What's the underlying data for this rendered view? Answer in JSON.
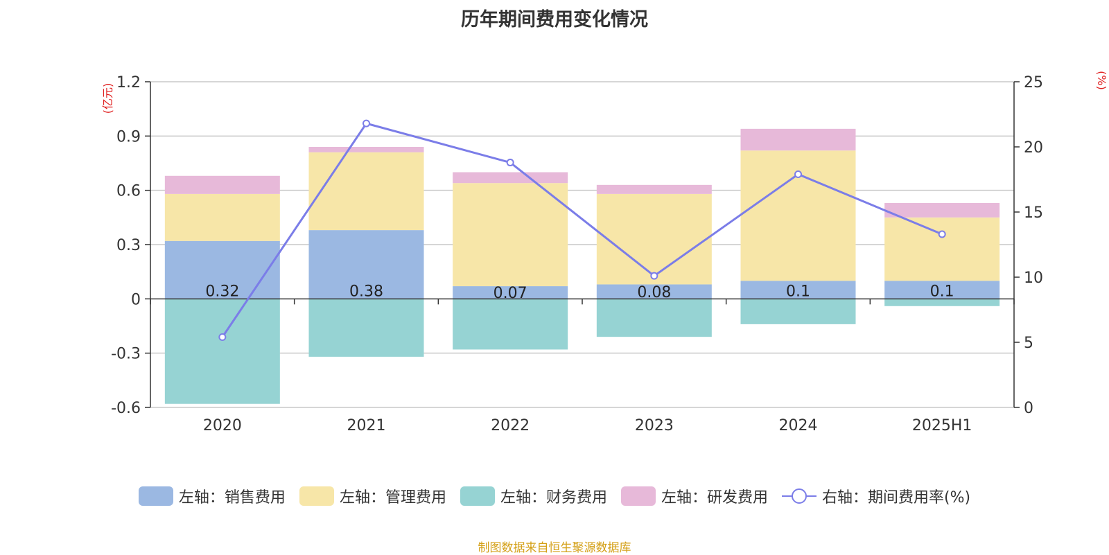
{
  "title": "历年期间费用变化情况",
  "source": "制图数据来自恒生聚源数据库",
  "chart_data": {
    "type": "bar",
    "stacked": true,
    "categories": [
      "2020",
      "2021",
      "2022",
      "2023",
      "2024",
      "2025H1"
    ],
    "left_axis": {
      "unit": "(亿元)",
      "ticks": [
        "1.2",
        "0.9",
        "0.6",
        "0.3",
        "0",
        "-0.3",
        "-0.6"
      ],
      "range": [
        -0.6,
        1.2
      ]
    },
    "right_axis": {
      "unit": "(%)",
      "ticks": [
        "25",
        "20",
        "15",
        "10",
        "5",
        "0"
      ],
      "range": [
        0,
        25
      ]
    },
    "series": [
      {
        "name": "左轴：销售费用",
        "axis": "left",
        "color": "#9bb8e2",
        "values": [
          0.32,
          0.38,
          0.07,
          0.08,
          0.1,
          0.1
        ],
        "labels": [
          "0.32",
          "0.38",
          "0.07",
          "0.08",
          "0.1",
          "0.1"
        ]
      },
      {
        "name": "左轴：管理费用",
        "axis": "left",
        "color": "#f7e6a8",
        "values": [
          0.26,
          0.43,
          0.57,
          0.5,
          0.72,
          0.35
        ]
      },
      {
        "name": "左轴：财务费用",
        "axis": "left",
        "color": "#96d3d3",
        "values": [
          -0.58,
          -0.32,
          -0.28,
          -0.21,
          -0.14,
          -0.04
        ]
      },
      {
        "name": "左轴：研发费用",
        "axis": "left",
        "color": "#e7b9d9",
        "values": [
          0.1,
          0.03,
          0.06,
          0.05,
          0.12,
          0.08
        ]
      },
      {
        "name": "右轴：期间费用率(%)",
        "axis": "right",
        "type": "line",
        "color": "#7b7de8",
        "values": [
          5.4,
          21.8,
          18.8,
          10.1,
          17.9,
          13.3
        ]
      }
    ],
    "grid": true
  }
}
